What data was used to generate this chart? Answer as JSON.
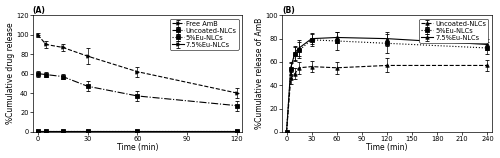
{
  "panel_A": {
    "title": "(A)",
    "xlabel": "Time (min)",
    "ylabel": "%Cumulative drug release",
    "xlim": [
      -3,
      123
    ],
    "ylim": [
      0,
      120
    ],
    "xticks": [
      0,
      30,
      60,
      90,
      120
    ],
    "yticks": [
      0,
      20,
      40,
      60,
      80,
      100,
      120
    ],
    "series": [
      {
        "label": "Free AmB",
        "x": [
          0,
          5,
          15,
          30,
          60,
          120
        ],
        "y": [
          100,
          90,
          87,
          78,
          62,
          40
        ],
        "yerr": [
          2,
          4,
          4,
          8,
          5,
          5
        ],
        "linestyle": "--",
        "marker": ">"
      },
      {
        "label": "Uncoated-NLCs",
        "x": [
          0,
          5,
          15,
          30,
          60,
          120
        ],
        "y": [
          60,
          59,
          57,
          47,
          37,
          27
        ],
        "yerr": [
          3,
          3,
          3,
          5,
          5,
          5
        ],
        "linestyle": "-.",
        "marker": "s"
      },
      {
        "label": "5%Eu-NLCs",
        "x": [
          0,
          5,
          15,
          30,
          60,
          120
        ],
        "y": [
          1,
          1,
          1,
          1,
          1,
          1
        ],
        "yerr": [
          0.3,
          0.3,
          0.3,
          0.3,
          0.3,
          0.3
        ],
        "linestyle": ":",
        "marker": "s"
      },
      {
        "label": "7.5%Eu-NLCs",
        "x": [
          0,
          5,
          15,
          30,
          60,
          120
        ],
        "y": [
          1,
          1,
          1,
          1,
          1,
          1
        ],
        "yerr": [
          0.3,
          0.3,
          0.3,
          0.3,
          0.3,
          0.3
        ],
        "linestyle": "-",
        "marker": ">"
      }
    ]
  },
  "panel_B": {
    "title": "(B)",
    "xlabel": "Time (min)",
    "ylabel": "%Cumulative release of AmB",
    "xlim": [
      -5,
      245
    ],
    "ylim": [
      0,
      100
    ],
    "xticks": [
      0,
      30,
      60,
      90,
      120,
      150,
      180,
      210,
      240
    ],
    "yticks": [
      0,
      20,
      40,
      60,
      80,
      100
    ],
    "series": [
      {
        "label": "Uncoated-NLCs",
        "x": [
          0,
          5,
          10,
          15,
          30,
          60,
          120,
          240
        ],
        "y": [
          0,
          46,
          50,
          55,
          56,
          55,
          57,
          57
        ],
        "yerr": [
          0,
          5,
          5,
          5,
          5,
          5,
          6,
          5
        ],
        "linestyle": "--",
        "marker": "^"
      },
      {
        "label": "5%Eu-NLCs",
        "x": [
          0,
          5,
          10,
          15,
          30,
          60,
          120,
          240
        ],
        "y": [
          0,
          54,
          67,
          70,
          79,
          78,
          76,
          72
        ],
        "yerr": [
          0,
          5,
          6,
          7,
          5,
          8,
          8,
          5
        ],
        "linestyle": ":",
        "marker": "s"
      },
      {
        "label": "7.5%Eu-NLCs",
        "x": [
          0,
          5,
          10,
          15,
          30,
          60,
          120,
          240
        ],
        "y": [
          0,
          55,
          68,
          72,
          80,
          81,
          80,
          75
        ],
        "yerr": [
          0,
          5,
          6,
          7,
          5,
          5,
          6,
          5
        ],
        "linestyle": "-",
        "marker": "^"
      }
    ]
  },
  "fontsize": 5.5,
  "legend_fontsize": 4.8,
  "tick_fontsize": 4.8,
  "linewidth": 0.8,
  "markersize": 2.5,
  "capsize": 1.2,
  "elinewidth": 0.5,
  "markeredgewidth": 0.6
}
